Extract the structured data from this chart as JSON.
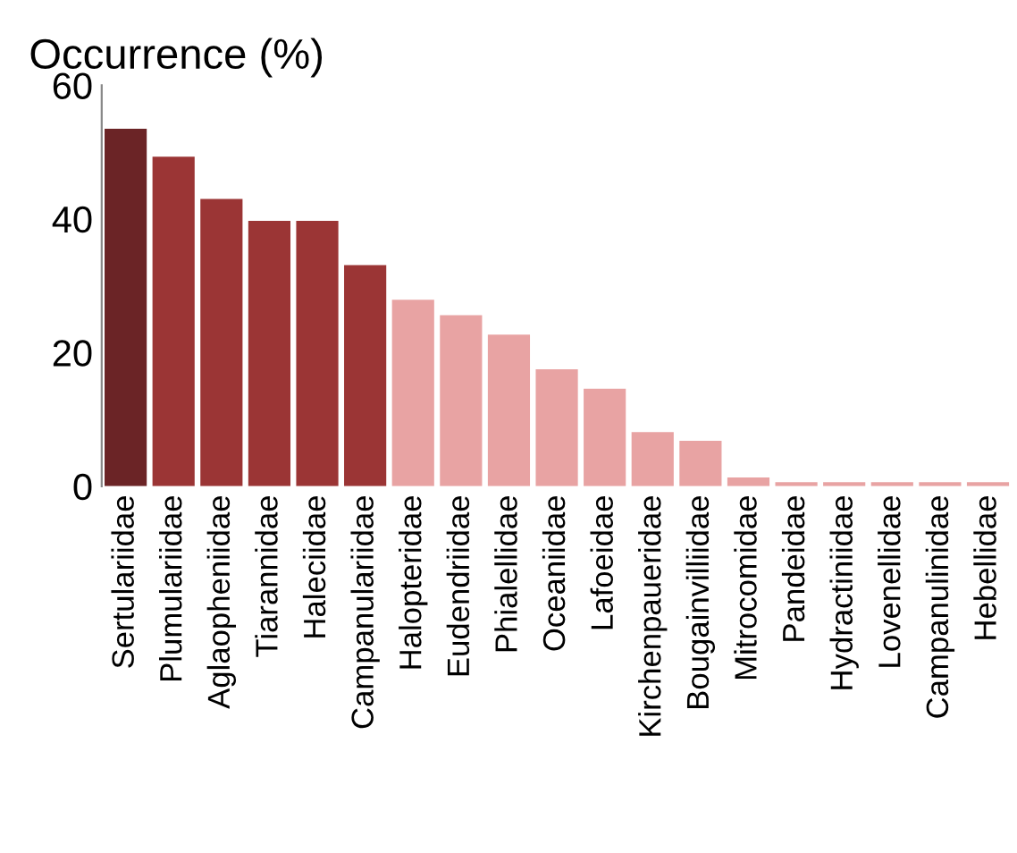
{
  "chart_data": {
    "type": "bar",
    "ylabel": "Occurrence (%)",
    "categories": [
      "Sertulariidae",
      "Plumulariidae",
      "Aglaopheniidae",
      "Tiarannidae",
      "Haleciidae",
      "Campanulariidae",
      "Halopteridae",
      "Eudendriidae",
      "Phialellidae",
      "Oceaniidae",
      "Lafoeidae",
      "Kirchenpaueridae",
      "Bougainvilliidae",
      "Mitrocomidae",
      "Pandeidae",
      "Hydractiniidae",
      "Lovenellidae",
      "Campanulinidae",
      "Hebellidae"
    ],
    "values": [
      53.5,
      49.3,
      43,
      39.7,
      39.7,
      33.1,
      27.9,
      25.6,
      22.7,
      17.5,
      14.6,
      8.1,
      6.8,
      1.3,
      0.6,
      0.6,
      0.6,
      0.6,
      0.6
    ],
    "colors": [
      "#6b2426",
      "#9b3535",
      "#9b3535",
      "#9b3535",
      "#9b3535",
      "#9b3535",
      "#e8a3a3",
      "#e8a3a3",
      "#e8a3a3",
      "#e8a3a3",
      "#e8a3a3",
      "#e8a3a3",
      "#e8a3a3",
      "#e8a3a3",
      "#e8a3a3",
      "#e8a3a3",
      "#e8a3a3",
      "#e8a3a3",
      "#e8a3a3"
    ],
    "ylim": [
      0,
      60
    ],
    "yticks": [
      0,
      20,
      40,
      60
    ],
    "grid": false,
    "legend": false
  }
}
